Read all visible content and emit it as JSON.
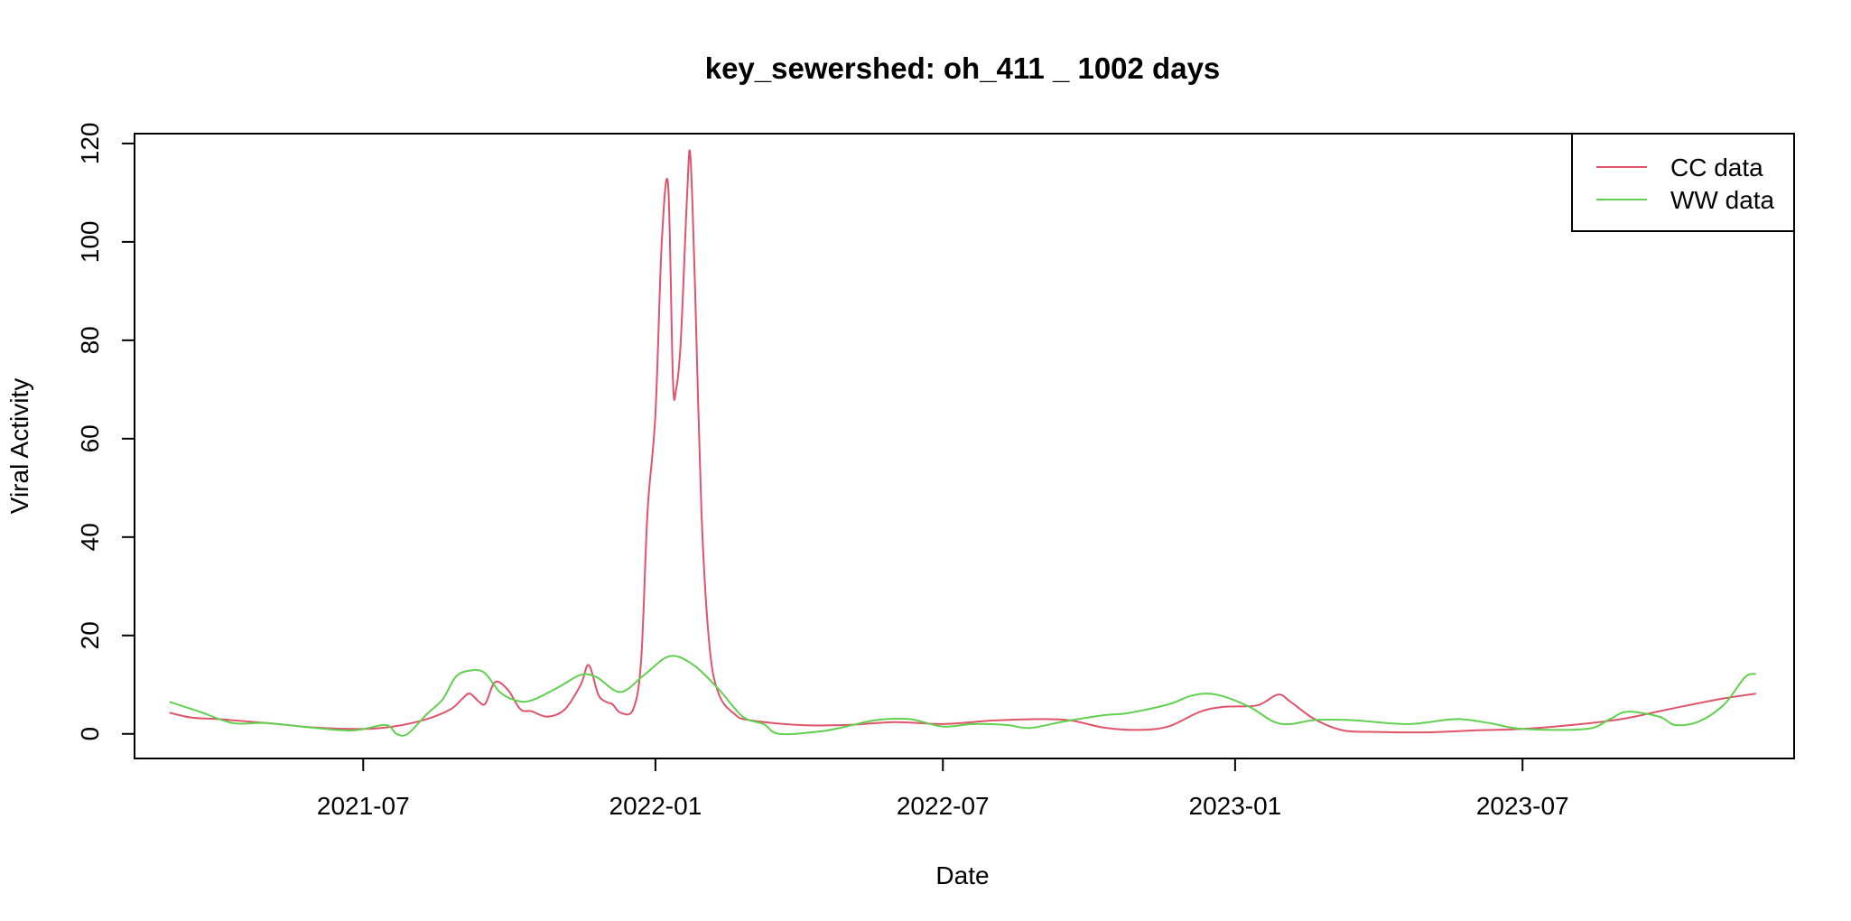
{
  "chart_data": {
    "type": "line",
    "title": "key_sewershed:  oh_411 _ 1002  days",
    "xlabel": "Date",
    "ylabel": "Viral Activity",
    "xlim": [
      "2021-02-07",
      "2023-12-19"
    ],
    "ylim": [
      -5,
      122
    ],
    "x_ticks": [
      "2021-07-01",
      "2022-01-01",
      "2022-07-01",
      "2023-01-01",
      "2023-07-01"
    ],
    "x_tick_labels": [
      "2021-07",
      "2022-01",
      "2022-07",
      "2023-01",
      "2023-07"
    ],
    "y_ticks": [
      0,
      20,
      40,
      60,
      80,
      100,
      120
    ],
    "y_tick_labels": [
      "0",
      "20",
      "40",
      "60",
      "80",
      "100",
      "120"
    ],
    "grid": false,
    "legend_position": "top-right",
    "series": [
      {
        "name": "CC data",
        "color": "#DF536B",
        "points": [
          [
            "2021-03-01",
            4.3
          ],
          [
            "2021-03-15",
            3.3
          ],
          [
            "2021-04-01",
            3.0
          ],
          [
            "2021-05-01",
            2.2
          ],
          [
            "2021-06-01",
            1.3
          ],
          [
            "2021-07-01",
            1.0
          ],
          [
            "2021-07-20",
            1.5
          ],
          [
            "2021-08-10",
            3.0
          ],
          [
            "2021-08-25",
            5.0
          ],
          [
            "2021-09-01",
            7.0
          ],
          [
            "2021-09-06",
            8.2
          ],
          [
            "2021-09-12",
            6.5
          ],
          [
            "2021-09-16",
            6.2
          ],
          [
            "2021-09-22",
            10.5
          ],
          [
            "2021-09-30",
            9.0
          ],
          [
            "2021-10-08",
            5.0
          ],
          [
            "2021-10-15",
            4.6
          ],
          [
            "2021-10-25",
            3.5
          ],
          [
            "2021-11-05",
            5.0
          ],
          [
            "2021-11-15",
            10.0
          ],
          [
            "2021-11-20",
            14.0
          ],
          [
            "2021-11-26",
            8.0
          ],
          [
            "2021-12-01",
            6.5
          ],
          [
            "2021-12-05",
            6.0
          ],
          [
            "2021-12-10",
            4.3
          ],
          [
            "2021-12-18",
            5.0
          ],
          [
            "2021-12-23",
            15.0
          ],
          [
            "2021-12-27",
            45.0
          ],
          [
            "2022-01-01",
            65.0
          ],
          [
            "2022-01-05",
            100.0
          ],
          [
            "2022-01-09",
            111.5
          ],
          [
            "2022-01-12",
            72.0
          ],
          [
            "2022-01-14",
            70.0
          ],
          [
            "2022-01-17",
            80.0
          ],
          [
            "2022-01-21",
            110.0
          ],
          [
            "2022-01-23",
            117.5
          ],
          [
            "2022-01-26",
            90.0
          ],
          [
            "2022-01-30",
            45.0
          ],
          [
            "2022-02-04",
            18.0
          ],
          [
            "2022-02-10",
            8.0
          ],
          [
            "2022-02-20",
            4.0
          ],
          [
            "2022-03-01",
            2.8
          ],
          [
            "2022-04-01",
            1.8
          ],
          [
            "2022-05-01",
            1.8
          ],
          [
            "2022-06-01",
            2.4
          ],
          [
            "2022-07-01",
            2.0
          ],
          [
            "2022-08-01",
            2.7
          ],
          [
            "2022-09-01",
            3.0
          ],
          [
            "2022-09-20",
            2.7
          ],
          [
            "2022-10-10",
            1.3
          ],
          [
            "2022-11-01",
            0.8
          ],
          [
            "2022-11-20",
            1.5
          ],
          [
            "2022-12-10",
            4.5
          ],
          [
            "2022-12-25",
            5.5
          ],
          [
            "2023-01-15",
            5.8
          ],
          [
            "2023-01-28",
            8.0
          ],
          [
            "2023-02-05",
            6.5
          ],
          [
            "2023-02-20",
            3.0
          ],
          [
            "2023-03-10",
            0.7
          ],
          [
            "2023-04-01",
            0.4
          ],
          [
            "2023-05-01",
            0.3
          ],
          [
            "2023-06-01",
            0.7
          ],
          [
            "2023-07-01",
            1.0
          ],
          [
            "2023-08-01",
            1.8
          ],
          [
            "2023-09-01",
            3.0
          ],
          [
            "2023-10-01",
            5.0
          ],
          [
            "2023-11-01",
            7.0
          ],
          [
            "2023-11-25",
            8.2
          ]
        ]
      },
      {
        "name": "WW data",
        "color": "#61D04F",
        "points": [
          [
            "2021-03-01",
            6.5
          ],
          [
            "2021-03-20",
            4.5
          ],
          [
            "2021-04-10",
            2.2
          ],
          [
            "2021-05-01",
            2.2
          ],
          [
            "2021-06-01",
            1.2
          ],
          [
            "2021-06-25",
            0.7
          ],
          [
            "2021-07-15",
            1.8
          ],
          [
            "2021-07-22",
            0.0
          ],
          [
            "2021-07-29",
            0.0
          ],
          [
            "2021-08-10",
            4.0
          ],
          [
            "2021-08-20",
            7.0
          ],
          [
            "2021-08-28",
            11.5
          ],
          [
            "2021-09-05",
            12.8
          ],
          [
            "2021-09-15",
            12.5
          ],
          [
            "2021-09-25",
            8.5
          ],
          [
            "2021-10-05",
            6.8
          ],
          [
            "2021-10-15",
            6.8
          ],
          [
            "2021-11-01",
            9.5
          ],
          [
            "2021-11-15",
            12.0
          ],
          [
            "2021-11-25",
            11.5
          ],
          [
            "2021-12-10",
            8.5
          ],
          [
            "2021-12-25",
            12.0
          ],
          [
            "2022-01-10",
            15.8
          ],
          [
            "2022-01-25",
            14.0
          ],
          [
            "2022-02-10",
            9.0
          ],
          [
            "2022-02-25",
            3.5
          ],
          [
            "2022-03-10",
            2.0
          ],
          [
            "2022-03-20",
            0.0
          ],
          [
            "2022-04-15",
            0.5
          ],
          [
            "2022-05-01",
            1.5
          ],
          [
            "2022-05-20",
            2.8
          ],
          [
            "2022-06-10",
            3.0
          ],
          [
            "2022-07-01",
            1.5
          ],
          [
            "2022-07-20",
            2.0
          ],
          [
            "2022-08-10",
            1.8
          ],
          [
            "2022-08-25",
            1.2
          ],
          [
            "2022-09-15",
            2.5
          ],
          [
            "2022-10-10",
            3.8
          ],
          [
            "2022-10-25",
            4.2
          ],
          [
            "2022-11-20",
            6.0
          ],
          [
            "2022-12-05",
            7.8
          ],
          [
            "2022-12-20",
            8.0
          ],
          [
            "2023-01-10",
            5.5
          ],
          [
            "2023-01-25",
            2.5
          ],
          [
            "2023-02-05",
            2.0
          ],
          [
            "2023-02-20",
            2.8
          ],
          [
            "2023-03-15",
            2.8
          ],
          [
            "2023-04-20",
            2.0
          ],
          [
            "2023-05-20",
            3.0
          ],
          [
            "2023-06-10",
            2.2
          ],
          [
            "2023-07-01",
            1.0
          ],
          [
            "2023-08-10",
            1.0
          ],
          [
            "2023-08-25",
            3.0
          ],
          [
            "2023-09-05",
            4.5
          ],
          [
            "2023-09-25",
            3.5
          ],
          [
            "2023-10-05",
            1.8
          ],
          [
            "2023-10-20",
            2.5
          ],
          [
            "2023-11-05",
            6.0
          ],
          [
            "2023-11-18",
            11.5
          ],
          [
            "2023-11-25",
            12.2
          ]
        ]
      }
    ]
  }
}
